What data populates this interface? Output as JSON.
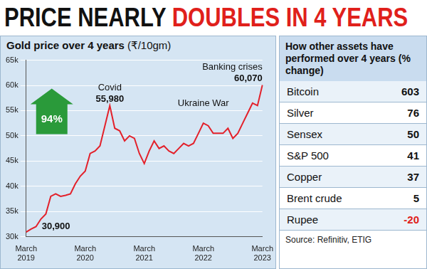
{
  "headline": {
    "parts": [
      {
        "text": "PRICE NEARLY",
        "color": "#111111"
      },
      {
        "text": "DOUBLES IN 4 YEARS",
        "color": "#e0201b"
      }
    ]
  },
  "chart_data": {
    "type": "line",
    "title": "Gold price over 4 years",
    "y_label": "(₹/10gm)",
    "categories": [
      "March 2019",
      null,
      null,
      null,
      null,
      null,
      null,
      null,
      null,
      null,
      null,
      null,
      "March 2020",
      null,
      null,
      null,
      null,
      null,
      null,
      null,
      null,
      null,
      null,
      null,
      "March 2021",
      null,
      null,
      null,
      null,
      null,
      null,
      null,
      null,
      null,
      null,
      null,
      "March 2022",
      null,
      null,
      null,
      null,
      null,
      null,
      null,
      null,
      null,
      null,
      null,
      "March 2023"
    ],
    "values": [
      30900,
      31500,
      32000,
      33500,
      34500,
      38000,
      38500,
      38000,
      38200,
      38500,
      40500,
      42000,
      43000,
      46500,
      47000,
      48000,
      52000,
      55980,
      51500,
      51000,
      49000,
      50000,
      49500,
      46500,
      44500,
      47000,
      49000,
      47500,
      48000,
      47000,
      46500,
      47500,
      48500,
      48000,
      48500,
      50500,
      52500,
      52000,
      50500,
      50500,
      50500,
      51500,
      49500,
      50500,
      52500,
      54500,
      56500,
      56000,
      60070
    ],
    "color": "#e3202a",
    "ylim": [
      30000,
      65000
    ],
    "yticks": [
      {
        "value": 30000,
        "label": "30k"
      },
      {
        "value": 35000,
        "label": "35k"
      },
      {
        "value": 40000,
        "label": "40k"
      },
      {
        "value": 45000,
        "label": "45k"
      },
      {
        "value": 50000,
        "label": "50k"
      },
      {
        "value": 55000,
        "label": "55k"
      },
      {
        "value": 60000,
        "label": "60k"
      },
      {
        "value": 65000,
        "label": "65k"
      }
    ],
    "grid": true,
    "annotations": [
      {
        "value": 30900,
        "value_label": "30,900"
      },
      {
        "text": "Covid",
        "value": 55980,
        "value_label": "55,980"
      },
      {
        "text": "Ukraine War",
        "category": "March 2022"
      },
      {
        "text": "Banking crises",
        "value": 60070,
        "value_label": "60,070"
      }
    ],
    "change": {
      "value": 94,
      "label": "94%"
    }
  },
  "table": {
    "title": "How other assets have performed over 4 years (% change)",
    "rows": [
      [
        "Bitcoin",
        603
      ],
      [
        "Silver",
        76
      ],
      [
        "Sensex",
        50
      ],
      [
        "S&P 500",
        41
      ],
      [
        "Copper",
        37
      ],
      [
        "Brent crude",
        5
      ],
      [
        "Rupee",
        -20
      ]
    ]
  },
  "source": "Source: Refinitiv, ETIG"
}
